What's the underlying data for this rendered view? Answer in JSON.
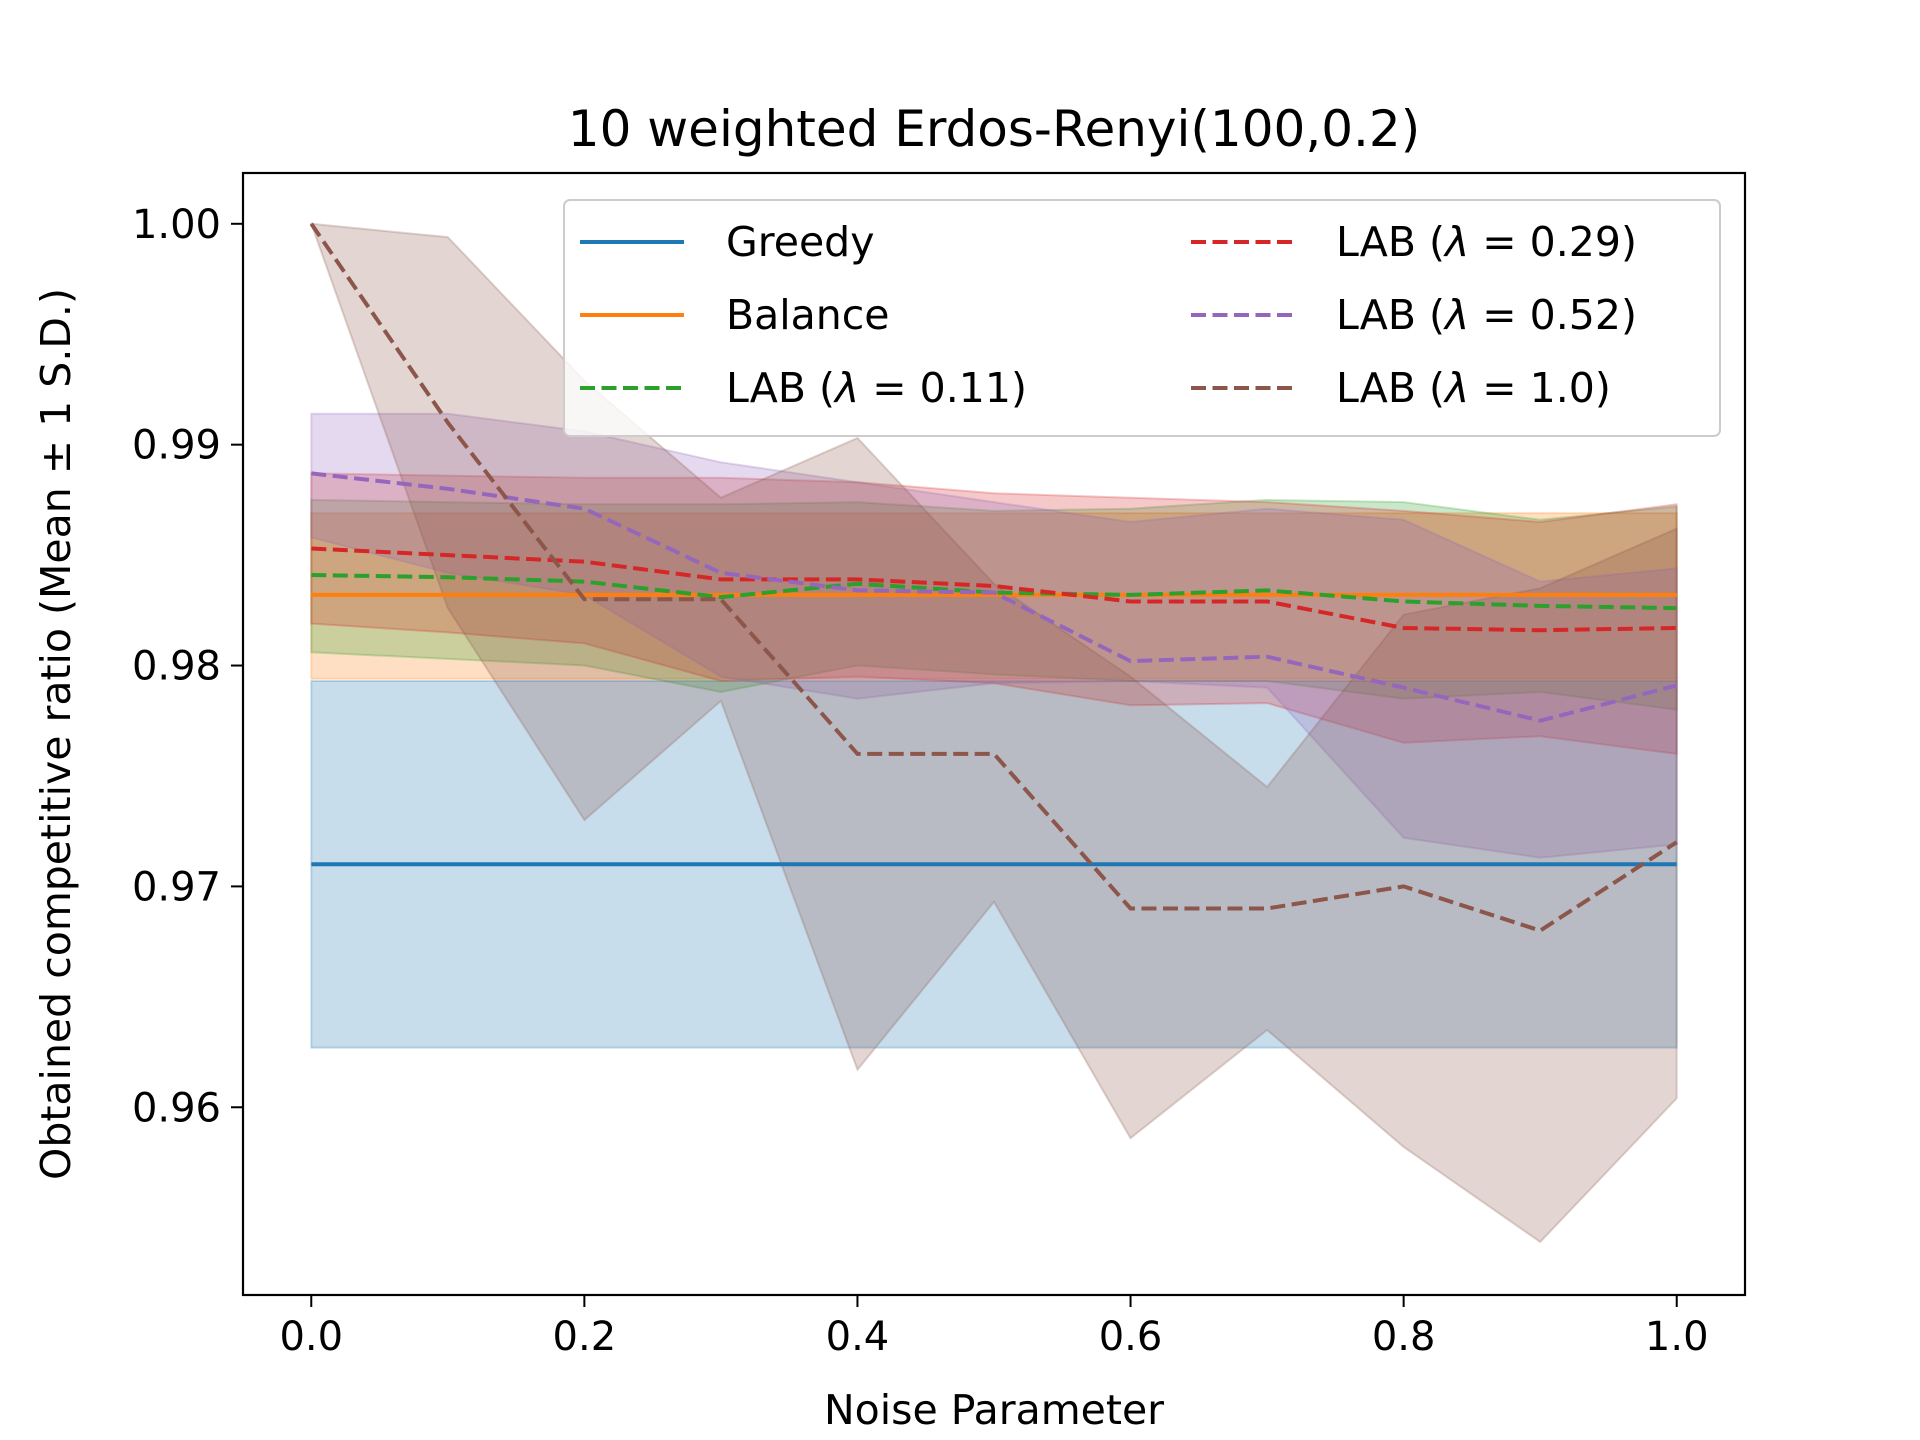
{
  "chart_data": {
    "type": "line",
    "title": "10 weighted Erdos-Renyi(100,0.2)",
    "xlabel": "Noise Parameter",
    "ylabel": "Obtained competitive ratio (Mean ± 1 S.D.)",
    "xlim": [
      -0.05,
      1.05
    ],
    "ylim": [
      0.9515,
      1.0023
    ],
    "xticks": [
      0.0,
      0.2,
      0.4,
      0.6,
      0.8,
      1.0
    ],
    "xtick_labels": [
      "0.0",
      "0.2",
      "0.4",
      "0.6",
      "0.8",
      "1.0"
    ],
    "yticks": [
      0.96,
      0.97,
      0.98,
      0.99,
      1.0
    ],
    "ytick_labels": [
      "0.96",
      "0.97",
      "0.98",
      "0.99",
      "1.00"
    ],
    "x": [
      0.0,
      0.1,
      0.2,
      0.3,
      0.4,
      0.5,
      0.6,
      0.7,
      0.8,
      0.9,
      1.0
    ],
    "legend_position": "top-right",
    "legend_columns": 2,
    "series": [
      {
        "name": "Greedy",
        "legend_prefix": "Greedy",
        "legend_lambda": "",
        "legend_suffix": "",
        "color": "#1f77b4",
        "style": "solid",
        "values": [
          0.971,
          0.971,
          0.971,
          0.971,
          0.971,
          0.971,
          0.971,
          0.971,
          0.971,
          0.971,
          0.971
        ],
        "upper": [
          0.9793,
          0.9793,
          0.9793,
          0.9793,
          0.9793,
          0.9793,
          0.9793,
          0.9793,
          0.9793,
          0.9793,
          0.9793
        ],
        "lower": [
          0.9627,
          0.9627,
          0.9627,
          0.9627,
          0.9627,
          0.9627,
          0.9627,
          0.9627,
          0.9627,
          0.9627,
          0.9627
        ]
      },
      {
        "name": "Balance",
        "legend_prefix": "Balance",
        "legend_lambda": "",
        "legend_suffix": "",
        "color": "#ff7f0e",
        "style": "solid",
        "values": [
          0.9832,
          0.9832,
          0.9832,
          0.9832,
          0.9832,
          0.9832,
          0.9832,
          0.9832,
          0.9832,
          0.9832,
          0.9832
        ],
        "upper": [
          0.9869,
          0.9869,
          0.9869,
          0.9869,
          0.9869,
          0.9869,
          0.9869,
          0.9869,
          0.9869,
          0.9869,
          0.9869
        ],
        "lower": [
          0.9794,
          0.9794,
          0.9794,
          0.9794,
          0.9794,
          0.9794,
          0.9794,
          0.9794,
          0.9794,
          0.9794,
          0.9794
        ]
      },
      {
        "name": "LAB (λ = 0.11)",
        "legend_prefix": "LAB (",
        "legend_lambda": "λ",
        "legend_suffix": " = 0.11)",
        "color": "#2ca02c",
        "style": "dashed",
        "values": [
          0.9841,
          0.984,
          0.9838,
          0.9831,
          0.9837,
          0.9833,
          0.9832,
          0.9834,
          0.9829,
          0.9827,
          0.9826
        ],
        "upper": [
          0.9875,
          0.9874,
          0.9873,
          0.9873,
          0.9874,
          0.987,
          0.9871,
          0.9875,
          0.9874,
          0.9866,
          0.9872
        ],
        "lower": [
          0.9806,
          0.9803,
          0.98,
          0.9788,
          0.98,
          0.9796,
          0.9793,
          0.9793,
          0.9785,
          0.9788,
          0.978
        ]
      },
      {
        "name": "LAB (λ = 0.29)",
        "legend_prefix": "LAB (",
        "legend_lambda": "λ",
        "legend_suffix": " = 0.29)",
        "color": "#d62728",
        "style": "dashed",
        "values": [
          0.9853,
          0.985,
          0.9847,
          0.9839,
          0.9839,
          0.9836,
          0.9829,
          0.9829,
          0.9817,
          0.9816,
          0.9817
        ],
        "upper": [
          0.9887,
          0.9886,
          0.9885,
          0.9885,
          0.9883,
          0.9878,
          0.9876,
          0.9874,
          0.987,
          0.9865,
          0.9873
        ],
        "lower": [
          0.9819,
          0.9815,
          0.981,
          0.9793,
          0.9795,
          0.9792,
          0.9782,
          0.9783,
          0.9765,
          0.9768,
          0.976
        ]
      },
      {
        "name": "LAB (λ = 0.52)",
        "legend_prefix": "LAB (",
        "legend_lambda": "λ",
        "legend_suffix": " = 0.52)",
        "color": "#9467bd",
        "style": "dashed",
        "values": [
          0.9887,
          0.988,
          0.9871,
          0.9842,
          0.9834,
          0.9833,
          0.9802,
          0.9804,
          0.979,
          0.9775,
          0.9791
        ],
        "upper": [
          0.9914,
          0.9914,
          0.9906,
          0.9892,
          0.9883,
          0.9874,
          0.9865,
          0.9871,
          0.9866,
          0.9838,
          0.9844
        ],
        "lower": [
          0.9858,
          0.9842,
          0.9832,
          0.9795,
          0.9785,
          0.9792,
          0.9793,
          0.979,
          0.9722,
          0.9713,
          0.9719
        ]
      },
      {
        "name": "LAB (λ = 1.0)",
        "legend_prefix": "LAB (",
        "legend_lambda": "λ",
        "legend_suffix": " = 1.0)",
        "color": "#8c564b",
        "style": "dashed",
        "values": [
          1.0,
          0.991,
          0.983,
          0.983,
          0.976,
          0.976,
          0.969,
          0.969,
          0.97,
          0.968,
          0.972
        ],
        "upper": [
          1.0,
          0.9994,
          0.9929,
          0.9876,
          0.9903,
          0.9837,
          0.9795,
          0.9745,
          0.9823,
          0.9835,
          0.9862
        ],
        "lower": [
          1.0,
          0.9826,
          0.973,
          0.9784,
          0.9617,
          0.9693,
          0.9586,
          0.9635,
          0.9582,
          0.9539,
          0.9604
        ]
      }
    ]
  }
}
